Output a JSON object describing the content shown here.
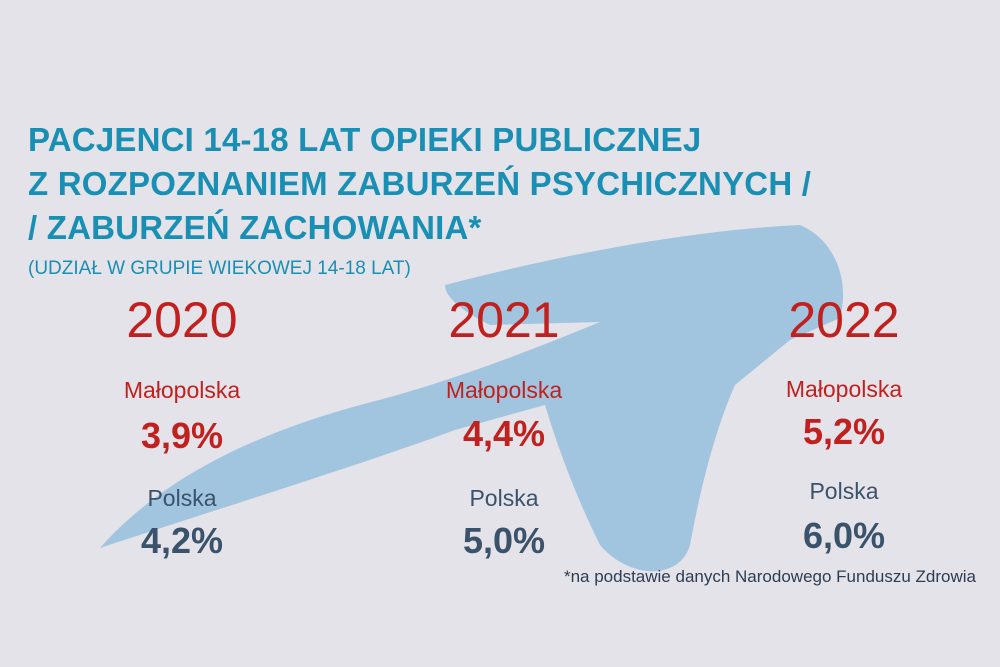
{
  "title_lines": [
    "PACJENCI 14-18 LAT OPIEKI PUBLICZNEJ",
    "Z ROZPOZNANIEM ZABURZEŃ PSYCHICZNYCH /",
    "/ ZABURZEŃ ZACHOWANIA*"
  ],
  "subtitle": "(UDZIAŁ W GRUPIE WIEKOWEJ 14-18 LAT)",
  "footnote": "*na podstawie danych Narodowego Funduszu Zdrowia",
  "colors": {
    "background": "#e4e3ea",
    "title": "#1a8fb4",
    "malopolska": "#c0211f",
    "polska": "#3b526b",
    "arrow": "#9dc3de"
  },
  "chart_data": {
    "type": "table",
    "categories": [
      "2020",
      "2021",
      "2022"
    ],
    "series": [
      {
        "name": "Małopolska",
        "values": [
          3.9,
          4.4,
          5.2
        ],
        "labels": [
          "3,9%",
          "4,4%",
          "5,2%"
        ]
      },
      {
        "name": "Polska",
        "values": [
          4.2,
          5.0,
          6.0
        ],
        "labels": [
          "4,2%",
          "5,0%",
          "6,0%"
        ]
      }
    ]
  }
}
